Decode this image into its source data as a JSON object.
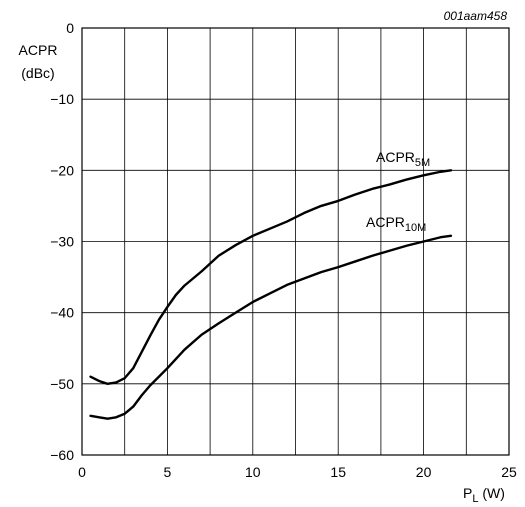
{
  "figure_id": "001aam458",
  "chart_data": {
    "type": "line",
    "title": "",
    "ylabel_line1": "ACPR",
    "ylabel_line2": "(dBc)",
    "xlabel_main": "P",
    "xlabel_sub": "L",
    "xlabel_unit": " (W)",
    "xlim": [
      0,
      25
    ],
    "ylim": [
      -60,
      0
    ],
    "xticks": [
      0,
      5,
      10,
      15,
      20,
      25
    ],
    "yticks": [
      0,
      -10,
      -20,
      -30,
      -40,
      -50,
      -60
    ],
    "xtick_labels": [
      "0",
      "5",
      "10",
      "15",
      "20",
      "25"
    ],
    "ytick_labels": [
      "0",
      "−10",
      "−20",
      "−30",
      "−40",
      "−50",
      "−60"
    ],
    "grid": true,
    "series": [
      {
        "name_main": "ACPR",
        "name_sub": "5M",
        "x": [
          0.5,
          1,
          1.5,
          2,
          2.5,
          3,
          3.5,
          4,
          4.5,
          5,
          5.5,
          6,
          7,
          8,
          9,
          10,
          11,
          12,
          13,
          14,
          15,
          16,
          17,
          18,
          19,
          20,
          21,
          21.6
        ],
        "y": [
          -49,
          -49.6,
          -50,
          -49.8,
          -49.2,
          -47.8,
          -45.5,
          -43.2,
          -41,
          -39.2,
          -37.5,
          -36.2,
          -34.2,
          -32,
          -30.5,
          -29.2,
          -28.2,
          -27.2,
          -26,
          -25,
          -24.3,
          -23.4,
          -22.6,
          -22,
          -21.3,
          -20.7,
          -20.2,
          -20
        ]
      },
      {
        "name_main": "ACPR",
        "name_sub": "10M",
        "x": [
          0.5,
          1,
          1.5,
          2,
          2.5,
          3,
          3.5,
          4,
          4.5,
          5,
          5.5,
          6,
          7,
          8,
          9,
          10,
          11,
          12,
          13,
          14,
          15,
          16,
          17,
          18,
          19,
          20,
          21,
          21.6
        ],
        "y": [
          -54.5,
          -54.7,
          -54.9,
          -54.7,
          -54.2,
          -53.2,
          -51.6,
          -50.2,
          -49,
          -47.8,
          -46.5,
          -45.2,
          -43.1,
          -41.5,
          -40,
          -38.5,
          -37.3,
          -36.1,
          -35.2,
          -34.3,
          -33.6,
          -32.8,
          -32,
          -31.3,
          -30.6,
          -30,
          -29.4,
          -29.2
        ]
      }
    ]
  }
}
